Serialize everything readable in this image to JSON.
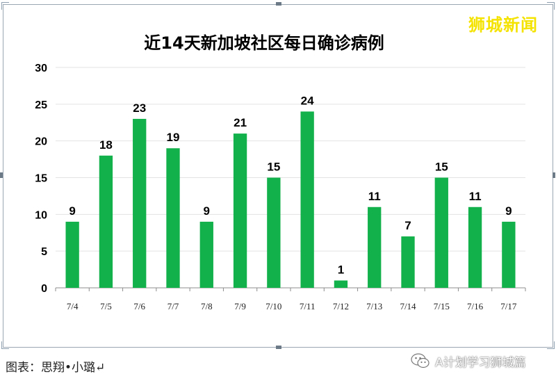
{
  "chart_data": {
    "type": "bar",
    "title": "近14天新加坡社区每日确诊病例",
    "categories": [
      "7/4",
      "7/5",
      "7/6",
      "7/7",
      "7/8",
      "7/9",
      "7/10",
      "7/11",
      "7/12",
      "7/13",
      "7/14",
      "7/15",
      "7/16",
      "7/17"
    ],
    "values": [
      9,
      18,
      23,
      19,
      9,
      21,
      15,
      24,
      1,
      11,
      7,
      15,
      11,
      9
    ],
    "ylim": [
      0,
      30
    ],
    "yticks": [
      0,
      5,
      10,
      15,
      20,
      25,
      30
    ],
    "xlabel": "",
    "ylabel": "",
    "bar_color": "#13b14b",
    "grid": true,
    "grid_color": "#e3e3e3",
    "data_labels": true,
    "legend": "none"
  },
  "brand": "狮城新闻",
  "caption": "图表：思翔•小璐↵",
  "watermark": "A计划学习狮城篇",
  "watermark_icon": "wechat-icon"
}
